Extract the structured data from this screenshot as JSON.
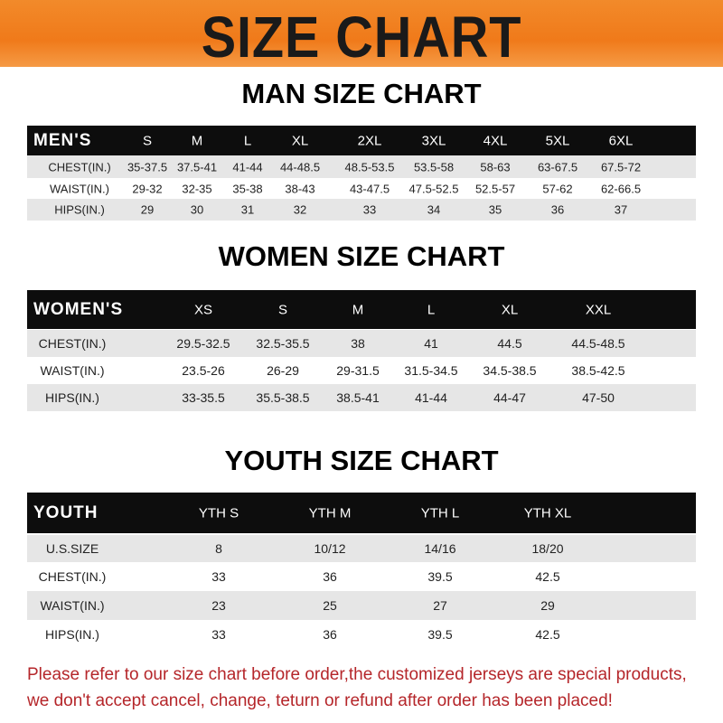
{
  "banner_title": "SIZE CHART",
  "men": {
    "title": "MAN SIZE CHART",
    "header": [
      "MEN'S",
      "S",
      "M",
      "L",
      "XL",
      "2XL",
      "3XL",
      "4XL",
      "5XL",
      "6XL"
    ],
    "rows": [
      [
        "CHEST(IN.)",
        "35-37.5",
        "37.5-41",
        "41-44",
        "44-48.5",
        "48.5-53.5",
        "53.5-58",
        "58-63",
        "63-67.5",
        "67.5-72"
      ],
      [
        "WAIST(IN.)",
        "29-32",
        "32-35",
        "35-38",
        "38-43",
        "43-47.5",
        "47.5-52.5",
        "52.5-57",
        "57-62",
        "62-66.5"
      ],
      [
        "HIPS(IN.)",
        "29",
        "30",
        "31",
        "32",
        "33",
        "34",
        "35",
        "36",
        "37"
      ]
    ]
  },
  "women": {
    "title": "WOMEN SIZE CHART",
    "header": [
      "WOMEN'S",
      "XS",
      "S",
      "M",
      "L",
      "XL",
      "XXL"
    ],
    "rows": [
      [
        "CHEST(IN.)",
        "29.5-32.5",
        "32.5-35.5",
        "38",
        "41",
        "44.5",
        "44.5-48.5"
      ],
      [
        "WAIST(IN.)",
        "23.5-26",
        "26-29",
        "29-31.5",
        "31.5-34.5",
        "34.5-38.5",
        "38.5-42.5"
      ],
      [
        "HIPS(IN.)",
        "33-35.5",
        "35.5-38.5",
        "38.5-41",
        "41-44",
        "44-47",
        "47-50"
      ]
    ]
  },
  "youth": {
    "title": "YOUTH SIZE CHART",
    "header": [
      "YOUTH",
      "YTH S",
      "YTH M",
      "YTH L",
      "YTH XL"
    ],
    "rows": [
      [
        "U.S.SIZE",
        "8",
        "10/12",
        "14/16",
        "18/20"
      ],
      [
        "CHEST(IN.)",
        "33",
        "36",
        "39.5",
        "42.5"
      ],
      [
        "WAIST(IN.)",
        "23",
        "25",
        "27",
        "29"
      ],
      [
        "HIPS(IN.)",
        "33",
        "36",
        "39.5",
        "42.5"
      ]
    ]
  },
  "notice": {
    "line1": "Please refer to our size chart before order,the customized jerseys are special products,",
    "line2": "we don't accept cancel, change, teturn or refund after order has been placed!"
  },
  "colors": {
    "banner": "#f07a1a",
    "header_row": "#0d0d0d",
    "notice_text": "#b5262a"
  }
}
